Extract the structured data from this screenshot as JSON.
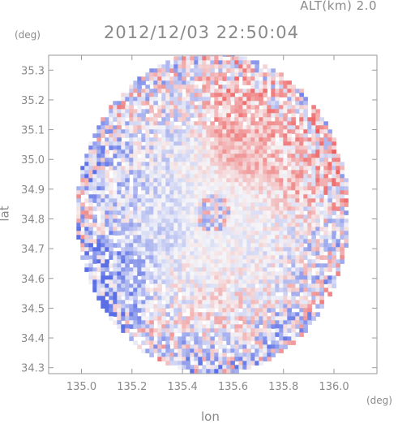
{
  "chart_data": {
    "type": "heatmap",
    "title": "2012/12/03 22:50:04",
    "altitude_label": "ALT(km) 2.0",
    "xlabel": "lon",
    "ylabel": "lat",
    "x_unit": "(deg)",
    "y_unit": "(deg)",
    "xlim": [
      134.87,
      136.17
    ],
    "ylim": [
      34.28,
      35.35
    ],
    "x_ticks": [
      135.0,
      135.2,
      135.4,
      135.6,
      135.8,
      136.0
    ],
    "x_tick_labels": [
      "135.0",
      "135.2",
      "135.4",
      "135.6",
      "135.8",
      "136.0"
    ],
    "y_ticks": [
      34.3,
      34.4,
      34.5,
      34.6,
      34.7,
      34.8,
      34.9,
      35.0,
      35.1,
      35.2,
      35.3
    ],
    "y_tick_labels": [
      "34.3",
      "34.4",
      "34.5",
      "34.6",
      "34.7",
      "34.8",
      "34.9",
      "35.0",
      "35.1",
      "35.2",
      "35.3"
    ],
    "radar_center": [
      135.52,
      34.82
    ],
    "radar_radius_deg": 0.54,
    "colormap": {
      "negative": "#5a6ee6",
      "neutral": "#f6f6f8",
      "positive": "#ee5c5c"
    },
    "regions": [
      {
        "lon": 135.05,
        "lat": 34.6,
        "value": -0.55
      },
      {
        "lon": 135.15,
        "lat": 34.62,
        "value": -0.45
      },
      {
        "lon": 135.05,
        "lat": 34.45,
        "value": -0.5
      },
      {
        "lon": 135.1,
        "lat": 34.95,
        "value": -0.3
      },
      {
        "lon": 135.22,
        "lat": 34.93,
        "value": -0.22
      },
      {
        "lon": 135.3,
        "lat": 34.78,
        "value": -0.18
      },
      {
        "lon": 135.62,
        "lat": 35.15,
        "value": 0.45
      },
      {
        "lon": 135.66,
        "lat": 35.05,
        "value": 0.38
      },
      {
        "lon": 135.85,
        "lat": 34.97,
        "value": 0.3
      },
      {
        "lon": 135.92,
        "lat": 35.0,
        "value": 0.25
      },
      {
        "lon": 135.55,
        "lat": 34.48,
        "value": 0.12
      },
      {
        "lon": 135.8,
        "lat": 34.38,
        "value": -0.2
      },
      {
        "lon": 135.5,
        "lat": 34.32,
        "value": -0.25
      },
      {
        "lon": 135.95,
        "lat": 34.65,
        "value": -0.12
      },
      {
        "lon": 135.3,
        "lat": 35.1,
        "value": -0.08
      }
    ]
  }
}
